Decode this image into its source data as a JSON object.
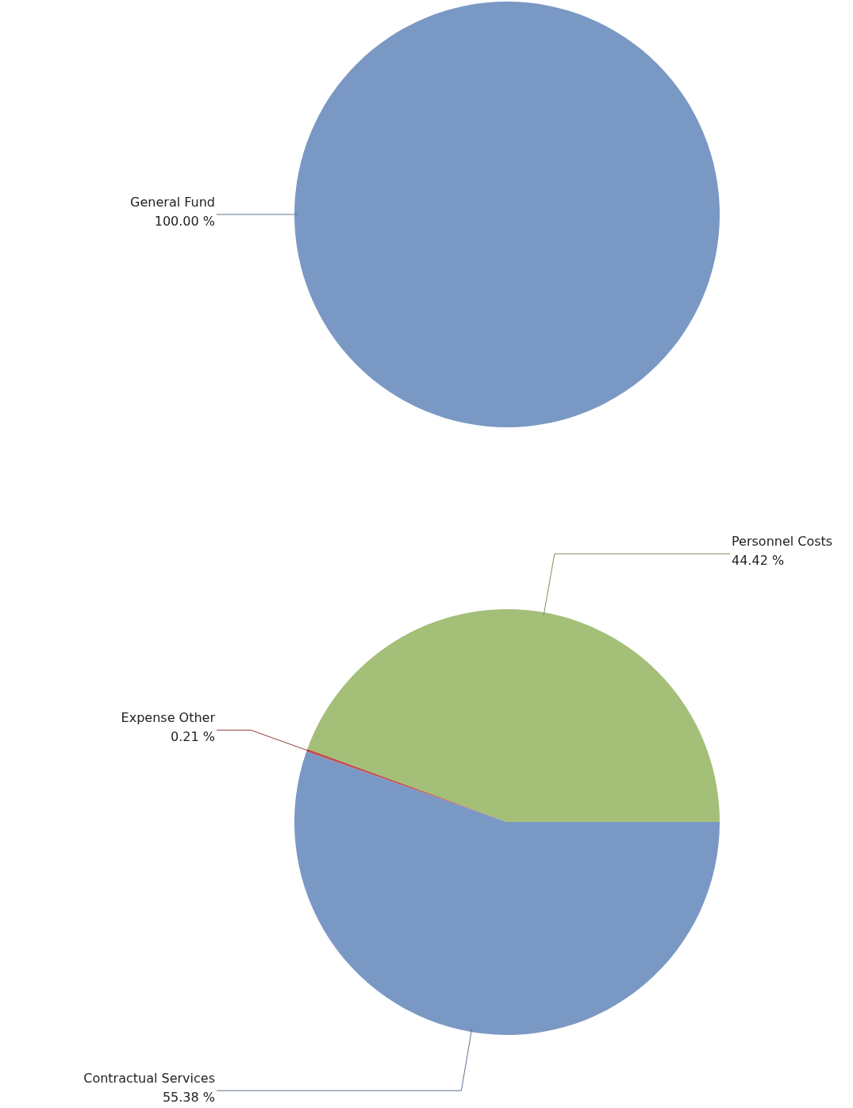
{
  "chart_data": [
    {
      "type": "pie",
      "categories": [
        "General Fund"
      ],
      "values": [
        100
      ],
      "colors": [
        "#7a98c4"
      ],
      "value_labels": [
        "100.00 %"
      ]
    },
    {
      "type": "pie",
      "categories": [
        "Personnel Costs",
        "Expense Other",
        "Contractual Services"
      ],
      "values": [
        44.42,
        0.21,
        55.38
      ],
      "colors": [
        "#a4bf78",
        "#c0504d",
        "#7a98c4"
      ],
      "value_labels": [
        "44.42 %",
        "0.21 %",
        "55.38 %"
      ]
    }
  ]
}
